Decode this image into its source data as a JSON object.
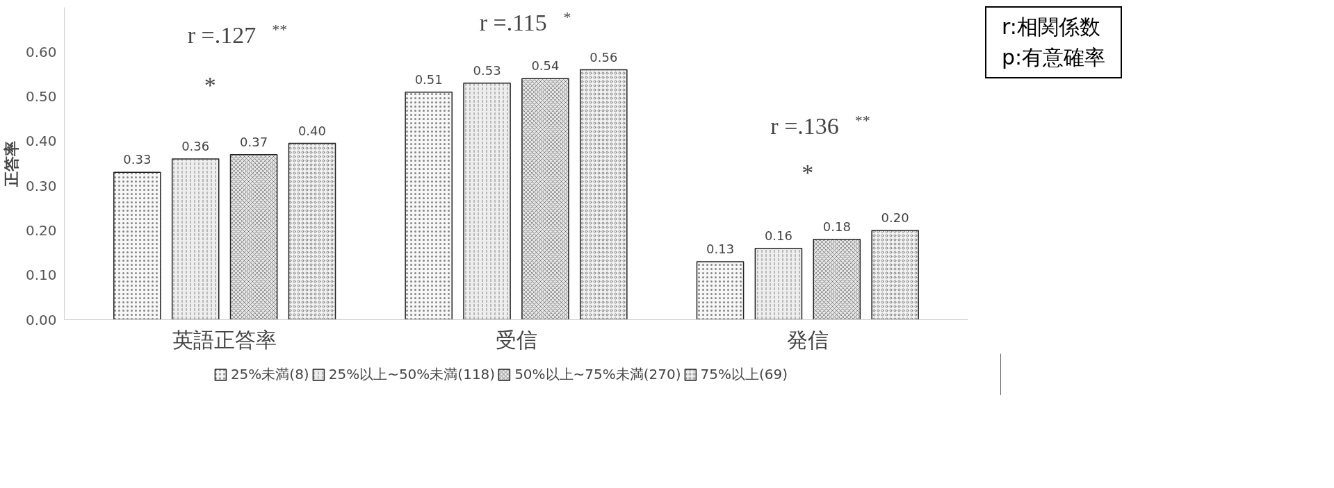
{
  "chart_data": {
    "type": "bar",
    "ylabel": "正答率",
    "categories": [
      "英語正答率",
      "受信",
      "発信"
    ],
    "series": [
      {
        "name": "25%未満(8)",
        "color": "#f7f7f7",
        "values": [
          0.33,
          0.51,
          0.13
        ],
        "value_labels": [
          "0.33",
          "0.51",
          "0.13"
        ]
      },
      {
        "name": "25%以上~50%未満(118)",
        "color": "#eeeeee",
        "values": [
          0.36,
          0.53,
          0.16
        ],
        "value_labels": [
          "0.36",
          "0.53",
          "0.16"
        ]
      },
      {
        "name": "50%以上~75%未満(270)",
        "color": "#e6e6e6",
        "values": [
          0.37,
          0.54,
          0.18
        ],
        "value_labels": [
          "0.37",
          "0.54",
          "0.18"
        ]
      },
      {
        "name": "75%以上(69)",
        "color": "#f2f2f2",
        "values": [
          0.395,
          0.56,
          0.2
        ],
        "value_labels": [
          "0.40",
          "0.56",
          "0.20"
        ]
      }
    ],
    "ylim": [
      0,
      0.7
    ],
    "yticks": [
      {
        "value": 0,
        "label": "0.00"
      },
      {
        "value": 0.1,
        "label": "0.10"
      },
      {
        "value": 0.2,
        "label": "0.20"
      },
      {
        "value": 0.3,
        "label": "0.30"
      },
      {
        "value": 0.4,
        "label": "0.40"
      },
      {
        "value": 0.5,
        "label": "0.50"
      },
      {
        "value": 0.6,
        "label": "0.60"
      }
    ],
    "grid": false,
    "legend": "bottom",
    "annotations": [
      "r =.127 $^{**}$",
      "r =.115 $^{*}$",
      "r =.136 $^{**}$",
      "*",
      "*",
      "r:相関係数",
      "p:有意確率"
    ]
  }
}
